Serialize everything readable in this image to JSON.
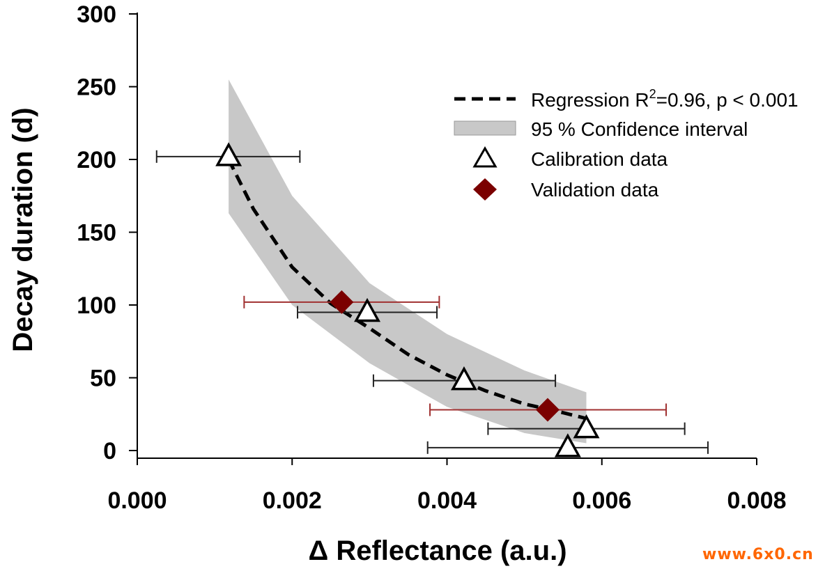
{
  "chart_data": {
    "type": "scatter",
    "xlabel": "Δ Reflectance (a.u.)",
    "ylabel": "Decay duration (d)",
    "xlim": [
      0,
      0.008
    ],
    "ylim": [
      0,
      300
    ],
    "x_ticks": [
      "0.000",
      "0.002",
      "0.004",
      "0.006",
      "0.008"
    ],
    "x_tick_values": [
      0,
      0.002,
      0.004,
      0.006,
      0.008
    ],
    "y_ticks": [
      "0",
      "50",
      "100",
      "150",
      "200",
      "250",
      "300"
    ],
    "y_tick_values": [
      0,
      50,
      100,
      150,
      200,
      250,
      300
    ],
    "grid": false,
    "legend_position": "top-right",
    "colors": {
      "validation": "#7b0000",
      "validation_errorbar": "#a03030",
      "calibration_errorbar": "#222222",
      "confidence": "#c8c8c8"
    },
    "series": [
      {
        "name": "Regression R²=0.96, p < 0.001",
        "kind": "dashed-line",
        "x": [
          0.00118,
          0.0015,
          0.002,
          0.0025,
          0.003,
          0.0035,
          0.004,
          0.0045,
          0.005,
          0.0055,
          0.0058
        ],
        "y": [
          200,
          166,
          126,
          101,
          84,
          66,
          52,
          41,
          32,
          26,
          22
        ]
      },
      {
        "name": "95 % Confidence interval",
        "kind": "band",
        "x": [
          0.00118,
          0.002,
          0.003,
          0.004,
          0.005,
          0.0058
        ],
        "upper": [
          255,
          175,
          115,
          80,
          55,
          40
        ],
        "lower": [
          163,
          100,
          60,
          30,
          12,
          5
        ]
      },
      {
        "name": "Calibration data",
        "kind": "open-triangle",
        "points": [
          {
            "x": 0.00118,
            "y": 202,
            "xerr_low": 0.00025,
            "xerr_high": 0.0021
          },
          {
            "x": 0.00297,
            "y": 95,
            "xerr_low": 0.00207,
            "xerr_high": 0.00387
          },
          {
            "x": 0.00422,
            "y": 48,
            "xerr_low": 0.00305,
            "xerr_high": 0.0054
          },
          {
            "x": 0.0058,
            "y": 15,
            "xerr_low": 0.00453,
            "xerr_high": 0.00707
          },
          {
            "x": 0.00556,
            "y": 2,
            "xerr_low": 0.00375,
            "xerr_high": 0.00737
          }
        ]
      },
      {
        "name": "Validation data",
        "kind": "filled-diamond",
        "points": [
          {
            "x": 0.00264,
            "y": 102,
            "xerr_low": 0.00138,
            "xerr_high": 0.0039
          },
          {
            "x": 0.0053,
            "y": 28,
            "xerr_low": 0.00378,
            "xerr_high": 0.00683
          }
        ]
      }
    ]
  },
  "legend": {
    "regression_prefix": "Regression R",
    "regression_sup": "2",
    "regression_suffix": "=0.96, p < 0.001",
    "confidence": "95 % Confidence interval",
    "calibration": "Calibration data",
    "validation": "Validation data"
  },
  "watermark": "www.6x0.cn"
}
